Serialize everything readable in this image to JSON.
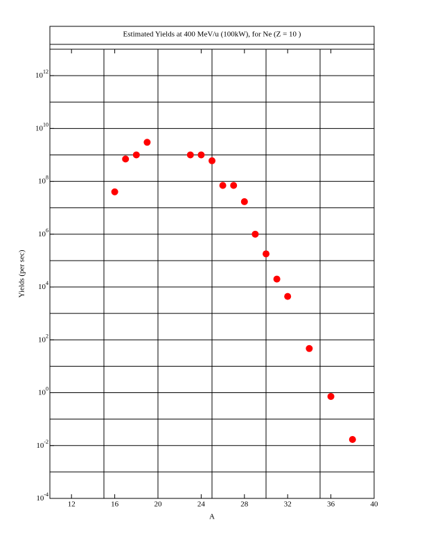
{
  "chart_data": {
    "type": "scatter",
    "title": "Estimated Yields at 400 MeV/u (100kW), for Ne (Z = 10 )",
    "x_label": "A",
    "y_label": "Yields (per sec)",
    "x": [
      16,
      17,
      18,
      19,
      23,
      24,
      25,
      26,
      27,
      28,
      29,
      30,
      31,
      32,
      34,
      36,
      38
    ],
    "values": [
      40000000,
      700000000,
      1000000000,
      3000000000,
      1000000000,
      1000000000,
      600000000,
      70000000,
      70000000,
      17000000,
      1000000,
      180000,
      20000,
      4400,
      47,
      0.72,
      0.017
    ],
    "color": "#ff0000",
    "xlim": [
      10,
      40
    ],
    "xticks": [
      12,
      16,
      20,
      24,
      28,
      32,
      36,
      40
    ],
    "xgrid": [
      15,
      20,
      25,
      30,
      35
    ],
    "ylim": [
      0.0001,
      10000000000000
    ],
    "log_y": true,
    "yticks": [
      {
        "value": 0.0001,
        "label": [
          "10",
          "-4"
        ]
      },
      {
        "value": 0.01,
        "label": [
          "10",
          "-2"
        ]
      },
      {
        "value": 1,
        "label": [
          "10",
          "0"
        ]
      },
      {
        "value": 100,
        "label": [
          "10",
          "2"
        ]
      },
      {
        "value": 10000,
        "label": [
          "10",
          "4"
        ]
      },
      {
        "value": 1000000,
        "label": [
          "10",
          "6"
        ]
      },
      {
        "value": 100000000,
        "label": [
          "10",
          "8"
        ]
      },
      {
        "value": 10000000000,
        "label": [
          "10",
          "10"
        ]
      },
      {
        "value": 1000000000000,
        "label": [
          "10",
          "12"
        ]
      }
    ],
    "ygrid": [
      0.001,
      0.01,
      0.1,
      1,
      10,
      100,
      1000,
      10000,
      100000,
      1000000,
      10000000,
      100000000,
      1000000000,
      10000000000,
      100000000000,
      1000000000000
    ],
    "grid": true
  }
}
